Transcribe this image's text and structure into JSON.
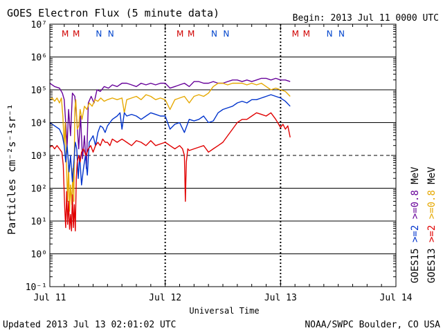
{
  "colors": {
    "goes15_08": "#660099",
    "goes13_08": "#e6a800",
    "goes15_2": "#0033cc",
    "goes13_2": "#e00000",
    "pass_m": "#d00000",
    "pass_n": "#0044cc",
    "line": "#000000",
    "background": "#ffffff"
  },
  "chart_data": {
    "type": "line",
    "title": "GOES Electron Flux (5 minute data)",
    "begin": "Begin: 2013 Jul 11 0000 UTC",
    "xlabel": "Universal Time",
    "ylabel": "Particles cm⁻²s⁻¹sr⁻¹",
    "updated": "Updated 2013 Jul 13 02:01:02 UTC",
    "source": "NOAA/SWPC Boulder, CO USA",
    "x_unit": "hours since 2013 Jul 11 00:00 UTC",
    "xlim": [
      0,
      72
    ],
    "ylim_log10": [
      -1,
      7
    ],
    "x_ticks": [
      {
        "x": 0,
        "label": "Jul 11"
      },
      {
        "x": 24,
        "label": "Jul 12"
      },
      {
        "x": 48,
        "label": "Jul 13"
      },
      {
        "x": 72,
        "label": "Jul 14"
      }
    ],
    "y_ticks": [
      {
        "exp": 7,
        "label": "10⁷"
      },
      {
        "exp": 6,
        "label": "10⁶"
      },
      {
        "exp": 5,
        "label": "10⁵"
      },
      {
        "exp": 4,
        "label": "10⁴"
      },
      {
        "exp": 3,
        "label": "10³"
      },
      {
        "exp": 2,
        "label": "10²"
      },
      {
        "exp": 1,
        "label": "10¹"
      },
      {
        "exp": 0,
        "label": "10⁰"
      },
      {
        "exp": -1,
        "label": "10⁻¹"
      }
    ],
    "gridlines_log10": [
      6,
      5,
      4,
      2,
      1,
      0
    ],
    "threshold_log10": 3,
    "day_boundaries": [
      24,
      48
    ],
    "passes": [
      {
        "x": 3.2,
        "label": "M",
        "kind": "M"
      },
      {
        "x": 5.5,
        "label": "M",
        "kind": "M"
      },
      {
        "x": 10.2,
        "label": "N",
        "kind": "N"
      },
      {
        "x": 12.7,
        "label": "N",
        "kind": "N"
      },
      {
        "x": 27.1,
        "label": "M",
        "kind": "M"
      },
      {
        "x": 29.4,
        "label": "M",
        "kind": "M"
      },
      {
        "x": 34.2,
        "label": "N",
        "kind": "N"
      },
      {
        "x": 36.7,
        "label": "N",
        "kind": "N"
      },
      {
        "x": 51.1,
        "label": "M",
        "kind": "M"
      },
      {
        "x": 53.4,
        "label": "M",
        "kind": "M"
      },
      {
        "x": 58.2,
        "label": "N",
        "kind": "N"
      },
      {
        "x": 60.7,
        "label": "N",
        "kind": "N"
      }
    ],
    "series": [
      {
        "name": "GOES15 >=0.8 MeV",
        "colorKey": "goes15_08",
        "points": [
          [
            0,
            5.2
          ],
          [
            1,
            5.1
          ],
          [
            2,
            5.05
          ],
          [
            2.6,
            4.9
          ],
          [
            3,
            4.7
          ],
          [
            3.3,
            4.0
          ],
          [
            3.6,
            3.3
          ],
          [
            3.9,
            4.4
          ],
          [
            4.3,
            3.6
          ],
          [
            4.7,
            4.9
          ],
          [
            5.2,
            4.8
          ],
          [
            5.6,
            4.1
          ],
          [
            6,
            3.2
          ],
          [
            6.4,
            4.2
          ],
          [
            6.8,
            2.9
          ],
          [
            7.2,
            3.6
          ],
          [
            7.6,
            2.6
          ],
          [
            8,
            4.6
          ],
          [
            8.6,
            4.8
          ],
          [
            9.2,
            4.6
          ],
          [
            9.8,
            5.0
          ],
          [
            10.5,
            4.95
          ],
          [
            11.3,
            5.1
          ],
          [
            12.2,
            5.05
          ],
          [
            13,
            5.15
          ],
          [
            14,
            5.1
          ],
          [
            15,
            5.2
          ],
          [
            16,
            5.2
          ],
          [
            17,
            5.15
          ],
          [
            18,
            5.1
          ],
          [
            19,
            5.2
          ],
          [
            20,
            5.15
          ],
          [
            21,
            5.2
          ],
          [
            22,
            5.15
          ],
          [
            23,
            5.2
          ],
          [
            24,
            5.2
          ],
          [
            25,
            5.05
          ],
          [
            26,
            5.1
          ],
          [
            27,
            5.15
          ],
          [
            28,
            5.2
          ],
          [
            29,
            5.1
          ],
          [
            30,
            5.25
          ],
          [
            31,
            5.25
          ],
          [
            32,
            5.2
          ],
          [
            33,
            5.2
          ],
          [
            34,
            5.25
          ],
          [
            35,
            5.2
          ],
          [
            36,
            5.2
          ],
          [
            37,
            5.25
          ],
          [
            38,
            5.3
          ],
          [
            39,
            5.3
          ],
          [
            40,
            5.25
          ],
          [
            41,
            5.3
          ],
          [
            42,
            5.25
          ],
          [
            43,
            5.3
          ],
          [
            44,
            5.35
          ],
          [
            45,
            5.35
          ],
          [
            46,
            5.3
          ],
          [
            47,
            5.35
          ],
          [
            48,
            5.3
          ],
          [
            49,
            5.3
          ],
          [
            50,
            5.25
          ]
        ]
      },
      {
        "name": "GOES13 >=0.8 MeV",
        "colorKey": "goes13_08",
        "points": [
          [
            0,
            4.7
          ],
          [
            0.5,
            4.75
          ],
          [
            1,
            4.65
          ],
          [
            1.5,
            4.75
          ],
          [
            2,
            4.6
          ],
          [
            2.4,
            4.75
          ],
          [
            2.7,
            4.2
          ],
          [
            3,
            3.3
          ],
          [
            3.2,
            4.0
          ],
          [
            3.5,
            2.5
          ],
          [
            3.7,
            1.6
          ],
          [
            3.9,
            2.7
          ],
          [
            4.1,
            1.3
          ],
          [
            4.3,
            2.1
          ],
          [
            4.6,
            1.5
          ],
          [
            4.8,
            2.6
          ],
          [
            5,
            1.6
          ],
          [
            5.2,
            4.4
          ],
          [
            5.4,
            4.7
          ],
          [
            5.7,
            3.8
          ],
          [
            6,
            3.9
          ],
          [
            6.3,
            4.4
          ],
          [
            6.7,
            4.1
          ],
          [
            7.2,
            4.5
          ],
          [
            7.7,
            4.4
          ],
          [
            8.2,
            4.6
          ],
          [
            8.8,
            4.5
          ],
          [
            9.4,
            4.7
          ],
          [
            10,
            4.65
          ],
          [
            10.6,
            4.75
          ],
          [
            11.3,
            4.65
          ],
          [
            12,
            4.7
          ],
          [
            13,
            4.75
          ],
          [
            14,
            4.7
          ],
          [
            15,
            4.75
          ],
          [
            15.5,
            4.3
          ],
          [
            16,
            4.7
          ],
          [
            17,
            4.75
          ],
          [
            18,
            4.8
          ],
          [
            19,
            4.7
          ],
          [
            20,
            4.85
          ],
          [
            21,
            4.8
          ],
          [
            22,
            4.7
          ],
          [
            23,
            4.75
          ],
          [
            24,
            4.7
          ],
          [
            25,
            4.4
          ],
          [
            26,
            4.7
          ],
          [
            27,
            4.75
          ],
          [
            28,
            4.8
          ],
          [
            29,
            4.6
          ],
          [
            30,
            4.8
          ],
          [
            31,
            4.85
          ],
          [
            32,
            4.8
          ],
          [
            33,
            4.9
          ],
          [
            34,
            5.1
          ],
          [
            35,
            5.2
          ],
          [
            36,
            5.2
          ],
          [
            37,
            5.15
          ],
          [
            38,
            5.2
          ],
          [
            39,
            5.2
          ],
          [
            40,
            5.2
          ],
          [
            41,
            5.15
          ],
          [
            42,
            5.2
          ],
          [
            43,
            5.15
          ],
          [
            44,
            5.2
          ],
          [
            45,
            5.1
          ],
          [
            46,
            5.0
          ],
          [
            47,
            5.05
          ],
          [
            48,
            5.0
          ],
          [
            49,
            4.95
          ],
          [
            50,
            4.8
          ]
        ]
      },
      {
        "name": "GOES15 >=2 MeV",
        "colorKey": "goes15_2",
        "points": [
          [
            0,
            4.0
          ],
          [
            1,
            3.9
          ],
          [
            2,
            3.8
          ],
          [
            2.6,
            3.6
          ],
          [
            3,
            3.3
          ],
          [
            3.3,
            2.8
          ],
          [
            3.6,
            3.3
          ],
          [
            4,
            2.5
          ],
          [
            4.3,
            3.0
          ],
          [
            4.7,
            2.2
          ],
          [
            5,
            2.8
          ],
          [
            5.3,
            3.4
          ],
          [
            5.6,
            3.2
          ],
          [
            5.9,
            2.3
          ],
          [
            6.2,
            3.0
          ],
          [
            6.6,
            2.1
          ],
          [
            7,
            2.6
          ],
          [
            7.4,
            3.0
          ],
          [
            7.8,
            2.4
          ],
          [
            8.2,
            3.4
          ],
          [
            8.6,
            3.5
          ],
          [
            9,
            3.6
          ],
          [
            9.5,
            3.3
          ],
          [
            10,
            3.7
          ],
          [
            10.5,
            3.9
          ],
          [
            11,
            3.85
          ],
          [
            11.5,
            3.7
          ],
          [
            12,
            3.9
          ],
          [
            12.5,
            4.0
          ],
          [
            13,
            4.1
          ],
          [
            14,
            4.2
          ],
          [
            14.6,
            4.3
          ],
          [
            15,
            3.8
          ],
          [
            15.5,
            4.3
          ],
          [
            16,
            4.2
          ],
          [
            17,
            4.25
          ],
          [
            18,
            4.2
          ],
          [
            19,
            4.1
          ],
          [
            20,
            4.2
          ],
          [
            21,
            4.3
          ],
          [
            22,
            4.25
          ],
          [
            23,
            4.2
          ],
          [
            24,
            4.2
          ],
          [
            25,
            3.8
          ],
          [
            26,
            3.95
          ],
          [
            27,
            4.0
          ],
          [
            28,
            3.7
          ],
          [
            29,
            4.1
          ],
          [
            30,
            4.05
          ],
          [
            31,
            4.1
          ],
          [
            32,
            4.2
          ],
          [
            33,
            4.0
          ],
          [
            34,
            4.05
          ],
          [
            35,
            4.3
          ],
          [
            36,
            4.4
          ],
          [
            37,
            4.45
          ],
          [
            38,
            4.5
          ],
          [
            39,
            4.6
          ],
          [
            40,
            4.65
          ],
          [
            41,
            4.6
          ],
          [
            42,
            4.7
          ],
          [
            43,
            4.7
          ],
          [
            44,
            4.75
          ],
          [
            45,
            4.8
          ],
          [
            46,
            4.85
          ],
          [
            47,
            4.8
          ],
          [
            48,
            4.75
          ],
          [
            49,
            4.65
          ],
          [
            50,
            4.5
          ]
        ]
      },
      {
        "name": "GOES13 >=2 MeV",
        "colorKey": "goes13_2",
        "points": [
          [
            0,
            3.25
          ],
          [
            0.5,
            3.3
          ],
          [
            1,
            3.2
          ],
          [
            1.5,
            3.3
          ],
          [
            2,
            3.2
          ],
          [
            2.5,
            3.1
          ],
          [
            2.8,
            2.7
          ],
          [
            3.1,
            1.4
          ],
          [
            3.3,
            0.8
          ],
          [
            3.5,
            1.9
          ],
          [
            3.7,
            0.9
          ],
          [
            3.9,
            1.6
          ],
          [
            4.1,
            0.75
          ],
          [
            4.3,
            1.2
          ],
          [
            4.5,
            0.7
          ],
          [
            4.7,
            1.8
          ],
          [
            4.9,
            0.8
          ],
          [
            5.1,
            1.5
          ],
          [
            5.3,
            0.7
          ],
          [
            5.5,
            2.3
          ],
          [
            5.7,
            2.8
          ],
          [
            6,
            3.0
          ],
          [
            6.3,
            2.8
          ],
          [
            6.6,
            3.1
          ],
          [
            7,
            3.2
          ],
          [
            7.5,
            3.0
          ],
          [
            8,
            3.2
          ],
          [
            8.5,
            3.3
          ],
          [
            9,
            3.1
          ],
          [
            9.5,
            3.3
          ],
          [
            10,
            3.4
          ],
          [
            10.5,
            3.3
          ],
          [
            11,
            3.5
          ],
          [
            11.5,
            3.4
          ],
          [
            12,
            3.4
          ],
          [
            12.5,
            3.3
          ],
          [
            13,
            3.5
          ],
          [
            14,
            3.4
          ],
          [
            15,
            3.5
          ],
          [
            16,
            3.4
          ],
          [
            17,
            3.3
          ],
          [
            18,
            3.45
          ],
          [
            19,
            3.4
          ],
          [
            20,
            3.3
          ],
          [
            21,
            3.45
          ],
          [
            22,
            3.3
          ],
          [
            23,
            3.35
          ],
          [
            24,
            3.4
          ],
          [
            25,
            3.3
          ],
          [
            26,
            3.2
          ],
          [
            27,
            3.3
          ],
          [
            27.6,
            3.2
          ],
          [
            28,
            3.0
          ],
          [
            28.2,
            1.6
          ],
          [
            28.4,
            2.8
          ],
          [
            28.7,
            3.2
          ],
          [
            29,
            3.15
          ],
          [
            30,
            3.2
          ],
          [
            31,
            3.25
          ],
          [
            32,
            3.3
          ],
          [
            32.5,
            3.2
          ],
          [
            33,
            3.1
          ],
          [
            34,
            3.2
          ],
          [
            35,
            3.3
          ],
          [
            36,
            3.4
          ],
          [
            37,
            3.6
          ],
          [
            38,
            3.8
          ],
          [
            39,
            4.0
          ],
          [
            40,
            4.1
          ],
          [
            41,
            4.1
          ],
          [
            42,
            4.2
          ],
          [
            43,
            4.3
          ],
          [
            44,
            4.25
          ],
          [
            45,
            4.2
          ],
          [
            46,
            4.3
          ],
          [
            47,
            4.1
          ],
          [
            48,
            3.85
          ],
          [
            48.5,
            3.95
          ],
          [
            49,
            3.8
          ],
          [
            49.5,
            3.9
          ],
          [
            50,
            3.55
          ]
        ]
      }
    ],
    "legend": [
      {
        "label": "GOES15",
        "colorKey": "line"
      },
      {
        "label": ">=2",
        "colorKey": "goes15_2"
      },
      {
        "label": ">=0.8",
        "colorKey": "goes15_08"
      },
      {
        "label": "MeV",
        "colorKey": "line"
      },
      {
        "label": "GOES13",
        "colorKey": "line"
      },
      {
        "label": ">=2",
        "colorKey": "goes13_2"
      },
      {
        "label": ">=0.8",
        "colorKey": "goes13_08"
      },
      {
        "label": "MeV",
        "colorKey": "line"
      }
    ]
  }
}
